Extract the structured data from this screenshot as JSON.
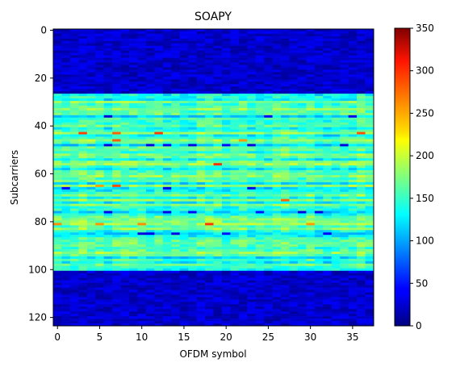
{
  "chart_data": {
    "type": "heatmap",
    "title": "SOAPY",
    "xlabel": "OFDM symbol",
    "ylabel": "Subcarriers",
    "x_range": [
      -0.5,
      37.5
    ],
    "y_range": [
      -0.5,
      123.5
    ],
    "y_inverted": true,
    "columns": 38,
    "rows": 124,
    "x_ticks": [
      0,
      5,
      10,
      15,
      20,
      25,
      30,
      35
    ],
    "y_ticks": [
      0,
      20,
      40,
      60,
      80,
      100,
      120
    ],
    "colormap": "jet",
    "color_range": [
      0,
      350
    ],
    "colorbar_ticks": [
      0,
      50,
      100,
      150,
      200,
      250,
      300,
      350
    ],
    "bands": [
      {
        "rows": [
          0,
          26
        ],
        "typical_value": 25
      },
      {
        "rows": [
          27,
          100
        ],
        "typical_value": 150
      },
      {
        "rows": [
          101,
          123
        ],
        "typical_value": 25
      }
    ],
    "grid": false
  }
}
